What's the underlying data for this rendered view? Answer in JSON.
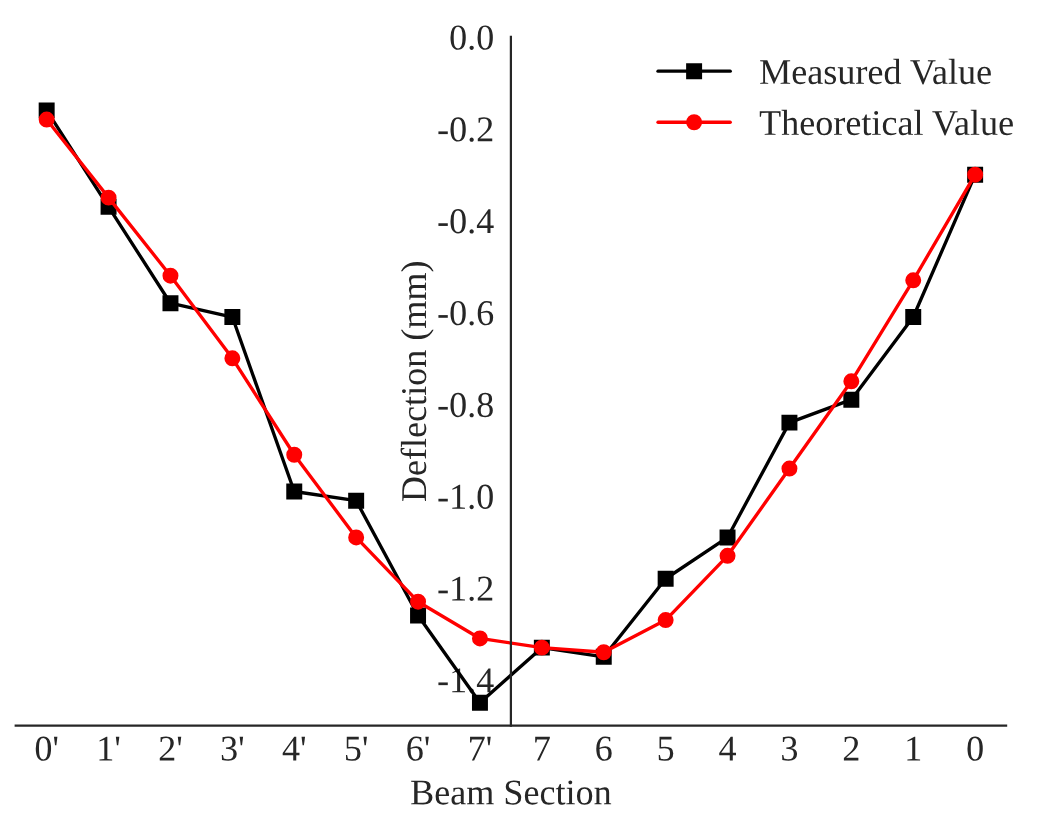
{
  "chart_data": {
    "type": "line",
    "xlabel": "Beam Section",
    "ylabel": "Deflection (mm)",
    "categories": [
      "0'",
      "1'",
      "2'",
      "3'",
      "4'",
      "5'",
      "6'",
      "7'",
      "7",
      "6",
      "5",
      "4",
      "3",
      "2",
      "1",
      "0"
    ],
    "series": [
      {
        "name": "Measured Value",
        "color": "#000000",
        "marker": "square",
        "values": [
          -0.16,
          -0.37,
          -0.58,
          -0.61,
          -0.99,
          -1.01,
          -1.26,
          -1.45,
          -1.33,
          -1.35,
          -1.18,
          -1.09,
          -0.84,
          -0.79,
          -0.61,
          -0.3
        ]
      },
      {
        "name": "Theoretical Value",
        "color": "#ff0000",
        "marker": "circle",
        "values": [
          -0.18,
          -0.35,
          -0.52,
          -0.7,
          -0.91,
          -1.09,
          -1.23,
          -1.31,
          -1.33,
          -1.34,
          -1.27,
          -1.13,
          -0.94,
          -0.75,
          -0.53,
          -0.3
        ]
      }
    ],
    "ylim": [
      -1.5,
      0.0
    ],
    "yticks": [
      {
        "value": -1.4,
        "label": "-1.4"
      },
      {
        "value": -1.2,
        "label": "-1.2"
      },
      {
        "value": -1.0,
        "label": "-1.0"
      },
      {
        "value": -0.8,
        "label": "-0.8"
      },
      {
        "value": -0.6,
        "label": "-0.6"
      },
      {
        "value": -0.4,
        "label": "-0.4"
      },
      {
        "value": -0.2,
        "label": "-0.2"
      },
      {
        "value": 0.0,
        "label": "0.0"
      }
    ],
    "grid": false,
    "legend": "top right",
    "line_style": "solid"
  }
}
